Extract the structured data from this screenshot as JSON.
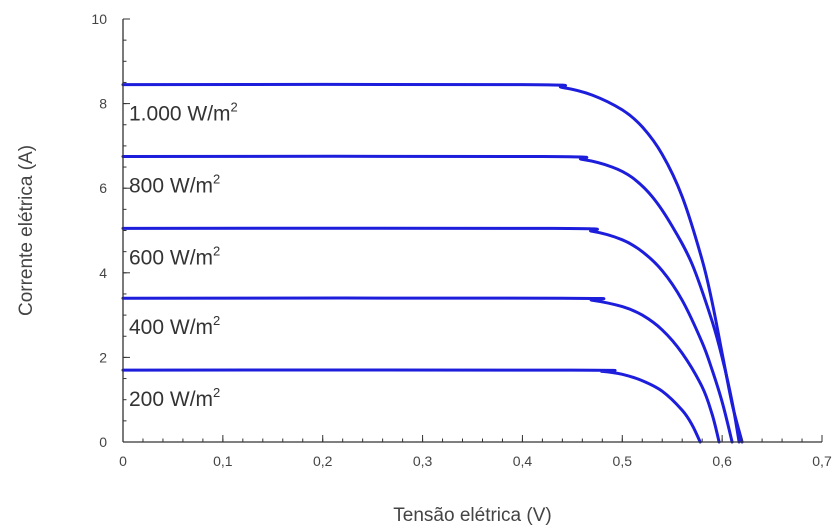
{
  "chart_data": {
    "type": "line",
    "title": "",
    "xlabel": "Tensão elétrica (V)",
    "ylabel": "Corrente elétrica (A)",
    "xlim": [
      0,
      0.7
    ],
    "ylim": [
      0,
      10
    ],
    "x_ticks": [
      0,
      0.1,
      0.2,
      0.3,
      0.4,
      0.5,
      0.6,
      0.7
    ],
    "x_tick_labels": [
      "0",
      "0,1",
      "0,2",
      "0,3",
      "0,4",
      "0,5",
      "0,6",
      "0,7"
    ],
    "y_ticks": [
      0,
      2,
      4,
      6,
      8,
      10
    ],
    "y_tick_labels": [
      "0",
      "2",
      "4",
      "6",
      "8",
      "10"
    ],
    "grid": false,
    "legend": "none",
    "line_color": "#1d1ddc",
    "series": [
      {
        "name": "1.000 W/m2",
        "label_main": "1.000 W/m",
        "label_sup": "2",
        "x": [
          0,
          0.4,
          0.44,
          0.47,
          0.5,
          0.52,
          0.54,
          0.56,
          0.58,
          0.59,
          0.6,
          0.61,
          0.62
        ],
        "y": [
          8.45,
          8.45,
          8.38,
          8.2,
          7.85,
          7.45,
          6.8,
          5.8,
          4.3,
          3.3,
          2.1,
          0.9,
          0
        ]
      },
      {
        "name": "800 W/m2",
        "label_main": "800 W/m",
        "label_sup": "2",
        "x": [
          0,
          0.42,
          0.46,
          0.49,
          0.51,
          0.53,
          0.55,
          0.57,
          0.59,
          0.6,
          0.61,
          0.617
        ],
        "y": [
          6.75,
          6.75,
          6.68,
          6.5,
          6.25,
          5.8,
          5.1,
          4.2,
          2.85,
          2.0,
          0.95,
          0
        ]
      },
      {
        "name": "600 W/m2",
        "label_main": "600 W/m",
        "label_sup": "2",
        "x": [
          0,
          0.43,
          0.47,
          0.5,
          0.52,
          0.54,
          0.56,
          0.58,
          0.59,
          0.6,
          0.61
        ],
        "y": [
          5.05,
          5.05,
          4.98,
          4.78,
          4.5,
          4.05,
          3.35,
          2.35,
          1.7,
          0.95,
          0
        ]
      },
      {
        "name": "400 W/m2",
        "label_main": "400 W/m",
        "label_sup": "2",
        "x": [
          0,
          0.44,
          0.47,
          0.5,
          0.52,
          0.54,
          0.56,
          0.58,
          0.59,
          0.597
        ],
        "y": [
          3.4,
          3.4,
          3.35,
          3.2,
          3.0,
          2.65,
          2.1,
          1.3,
          0.65,
          0
        ]
      },
      {
        "name": "200 W/m2",
        "label_main": "200 W/m",
        "label_sup": "2",
        "x": [
          0,
          0.45,
          0.48,
          0.5,
          0.52,
          0.54,
          0.56,
          0.57,
          0.578
        ],
        "y": [
          1.7,
          1.7,
          1.67,
          1.6,
          1.45,
          1.2,
          0.75,
          0.4,
          0
        ]
      }
    ]
  }
}
